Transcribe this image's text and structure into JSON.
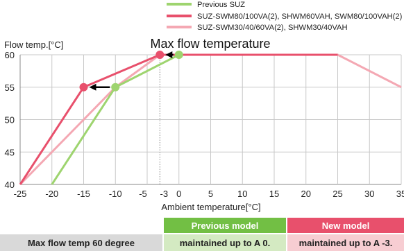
{
  "chart_data": {
    "type": "line",
    "title": "Max flow temperature",
    "ylabel": "Flow temp.[°C]",
    "xlabel": "Ambient temperature[°C]",
    "xlim": [
      -25,
      35
    ],
    "ylim": [
      40,
      60
    ],
    "x_ticks": [
      -25,
      -20,
      -15,
      -10,
      -5,
      -3,
      0,
      5,
      10,
      15,
      20,
      25,
      30,
      35
    ],
    "x_tick_labels": [
      "-25",
      "-20",
      "-15",
      "-10",
      "-5",
      "-3",
      "0",
      "5",
      "10",
      "15",
      "20",
      "25",
      "30",
      "35"
    ],
    "y_ticks": [
      40,
      45,
      50,
      55,
      60
    ],
    "grid": true,
    "legend_position": "top-right",
    "series": [
      {
        "name": "Previous SUZ",
        "color": "#9ed46f",
        "points": [
          [
            -20,
            40
          ],
          [
            -10,
            55
          ],
          [
            0,
            60
          ],
          [
            25,
            60
          ]
        ]
      },
      {
        "name": "SUZ-SWM80/100VA(2), SHWM60VAH, SWM80/100VAH(2)",
        "color": "#e8506c",
        "points": [
          [
            -25,
            40
          ],
          [
            -15,
            55
          ],
          [
            -3,
            60
          ],
          [
            25,
            60
          ]
        ]
      },
      {
        "name": "SUZ-SWM30/40/60VA(2), SHWM30/40VAH",
        "color": "#f4a8b3",
        "points": [
          [
            -25,
            40
          ],
          [
            -10,
            55
          ],
          [
            -3,
            60
          ],
          [
            25,
            60
          ],
          [
            35,
            55
          ]
        ]
      }
    ],
    "markers": [
      {
        "x": -15,
        "y": 55,
        "color": "#e8506c"
      },
      {
        "x": -10,
        "y": 55,
        "color": "#9ed46f"
      },
      {
        "x": -3,
        "y": 60,
        "color": "#e8506c"
      },
      {
        "x": 0,
        "y": 60,
        "color": "#9ed46f"
      }
    ],
    "arrows": [
      {
        "from": [
          -10,
          55
        ],
        "to": [
          -15,
          55
        ]
      },
      {
        "from": [
          0,
          60
        ],
        "to": [
          -3,
          60
        ]
      }
    ]
  },
  "table": {
    "header_previous": "Previous model",
    "header_new": "New model",
    "header_previous_color": "#72bf44",
    "header_new_color": "#e8506c",
    "row_label": "Max flow temp 60 degree",
    "row_previous": "maintained up to A 0.",
    "row_new": "maintained up to A -3."
  }
}
